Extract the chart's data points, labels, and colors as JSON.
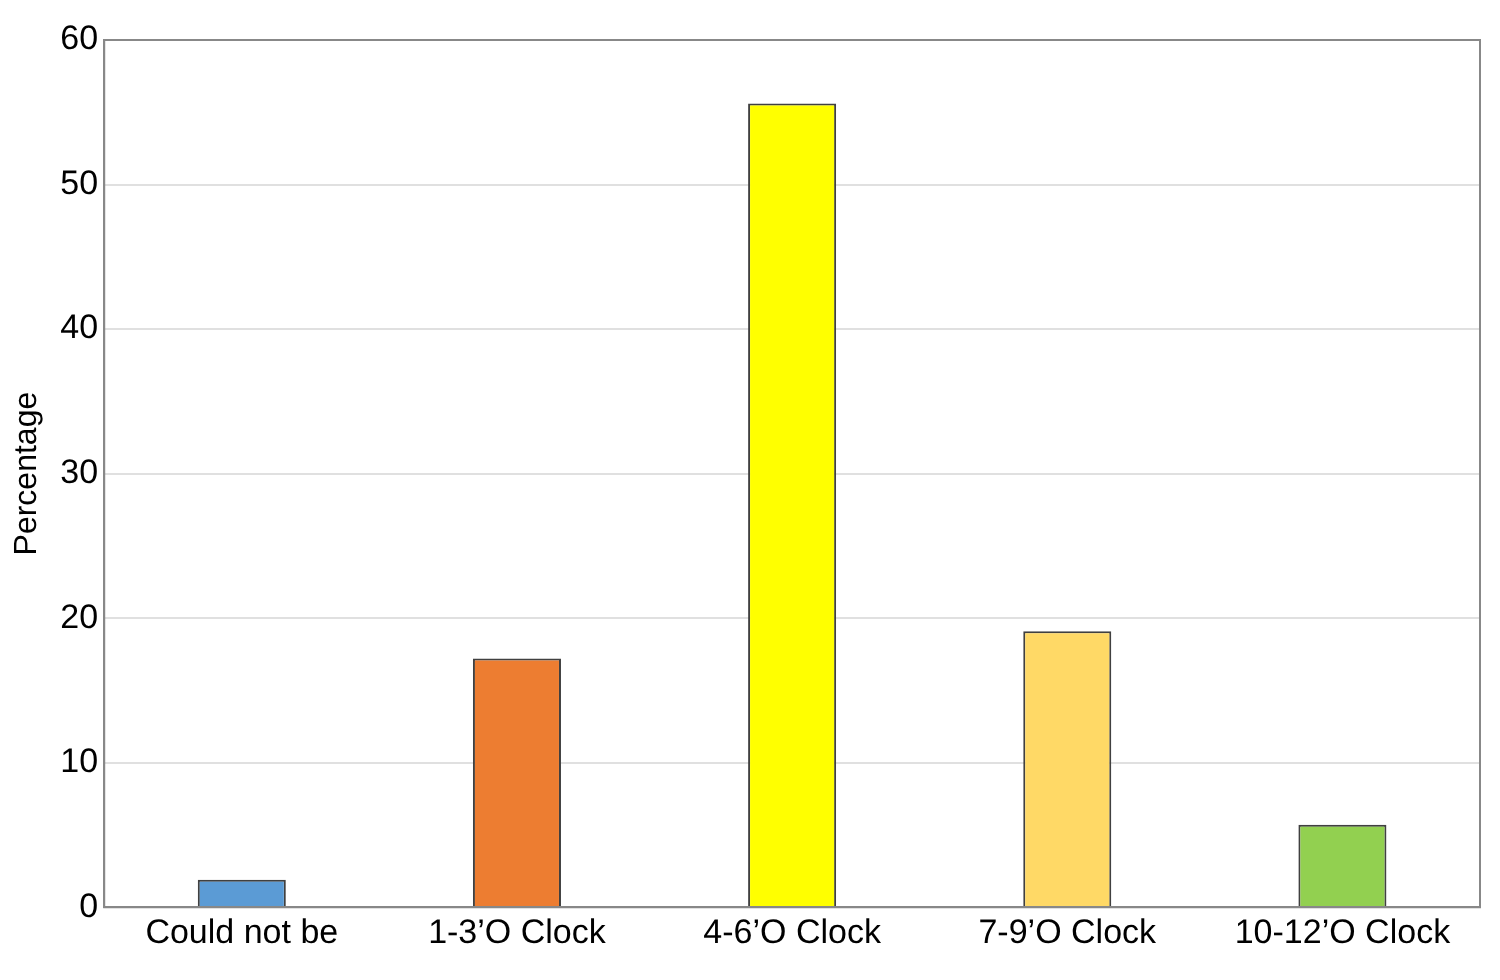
{
  "chart_data": {
    "type": "bar",
    "ylabel": "Percentage",
    "categories": [
      "Could not be",
      "1-3’O Clock",
      "4-6’O Clock",
      "7-9’O Clock",
      "10-12’O Clock"
    ],
    "values": [
      1.9,
      17.2,
      55.6,
      19.1,
      5.7
    ],
    "colors": [
      "#5b9bd5",
      "#ed7d31",
      "#ffff00",
      "#ffd966",
      "#92d050"
    ],
    "ylim": [
      0,
      60
    ],
    "yticks": [
      0,
      10,
      20,
      30,
      40,
      50,
      60
    ],
    "grid": "y",
    "legend": false
  }
}
